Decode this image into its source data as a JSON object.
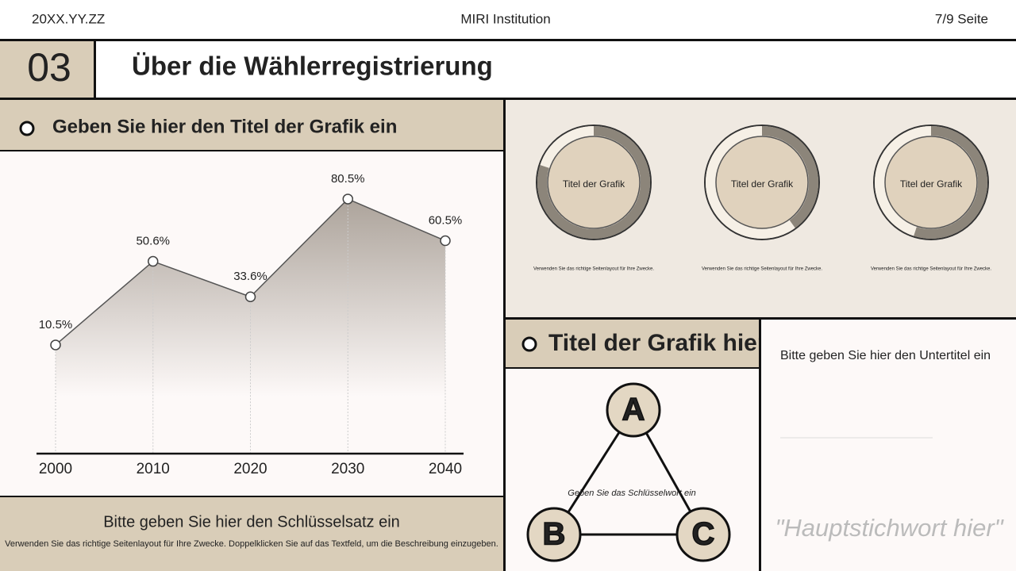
{
  "header": {
    "date": "20XX.YY.ZZ",
    "organization": "MIRI Institution",
    "page": "7/9 Seite"
  },
  "section": {
    "number": "03",
    "title": "Über die Wählerregistrierung"
  },
  "left_panel": {
    "heading": "Geben Sie hier den Titel der Grafik ein",
    "key_sentence": "Bitte geben Sie hier den Schlüsselsatz ein",
    "description": "Verwenden Sie das richtige Seitenlayout für Ihre Zwecke. Doppelklicken Sie auf das Textfeld, um die Beschreibung einzugeben."
  },
  "chart_data": [
    {
      "type": "area",
      "x": [
        2000,
        2010,
        2020,
        2030,
        2040
      ],
      "xticks": [
        2000,
        2010,
        2020,
        2030,
        2040
      ],
      "xlim": [
        2000,
        2040
      ],
      "ylim": [
        -40,
        100
      ],
      "values": [
        10.5,
        50.6,
        33.6,
        80.5,
        60.5
      ],
      "value_labels": [
        "10.5%",
        "50.6%",
        "33.6%",
        "80.5%",
        "60.5%"
      ],
      "color": "#9c9288"
    },
    {
      "type": "donut",
      "title": "Titel der Grafik",
      "caption": "Verwenden Sie das richtige Seitenlayout für Ihre Zwecke.",
      "values": [
        80,
        20
      ],
      "colors": [
        "#8c857a",
        "#f6f0e6"
      ]
    },
    {
      "type": "donut",
      "title": "Titel der Grafik",
      "caption": "Verwenden Sie das richtige Seitenlayout für Ihre Zwecke.",
      "values": [
        40,
        60
      ],
      "colors": [
        "#8c857a",
        "#f6f0e6"
      ]
    },
    {
      "type": "donut",
      "title": "Titel der Grafik",
      "caption": "Verwenden Sie das richtige Seitenlayout für Ihre Zwecke.",
      "values": [
        55,
        45
      ],
      "colors": [
        "#8c857a",
        "#f6f0e6"
      ]
    }
  ],
  "diagram": {
    "heading": "Titel der Grafik hier",
    "nodes": [
      {
        "label": "A"
      },
      {
        "label": "B"
      },
      {
        "label": "C"
      }
    ],
    "keyword": "Geben Sie das Schlüsselwort ein"
  },
  "side_note": {
    "subtitle": "Bitte geben Sie hier den Untertitel ein",
    "quote": "\"Hauptstichwort hier\""
  }
}
